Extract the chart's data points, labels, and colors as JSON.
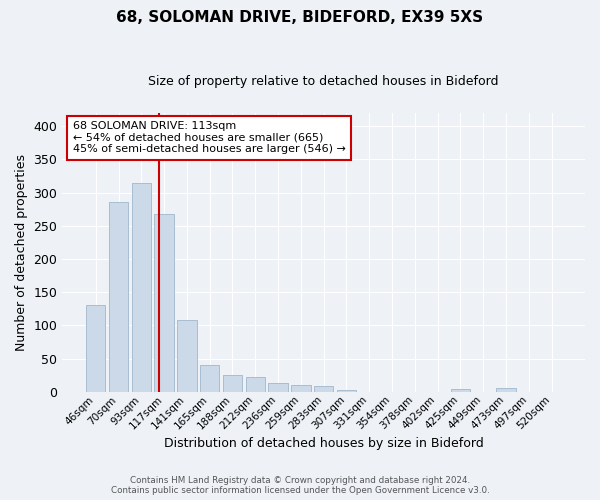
{
  "title": "68, SOLOMAN DRIVE, BIDEFORD, EX39 5XS",
  "subtitle": "Size of property relative to detached houses in Bideford",
  "xlabel": "Distribution of detached houses by size in Bideford",
  "ylabel": "Number of detached properties",
  "bar_labels": [
    "46sqm",
    "70sqm",
    "93sqm",
    "117sqm",
    "141sqm",
    "165sqm",
    "188sqm",
    "212sqm",
    "236sqm",
    "259sqm",
    "283sqm",
    "307sqm",
    "331sqm",
    "354sqm",
    "378sqm",
    "402sqm",
    "425sqm",
    "449sqm",
    "473sqm",
    "497sqm",
    "520sqm"
  ],
  "bar_values": [
    130,
    285,
    315,
    268,
    108,
    40,
    25,
    22,
    13,
    10,
    8,
    3,
    0,
    0,
    0,
    0,
    4,
    0,
    5,
    0,
    0
  ],
  "bar_color": "#ccd9e8",
  "bar_edge_color": "#a8bdd0",
  "vline_color": "#cc0000",
  "annotation_title": "68 SOLOMAN DRIVE: 113sqm",
  "annotation_line1": "← 54% of detached houses are smaller (665)",
  "annotation_line2": "45% of semi-detached houses are larger (546) →",
  "annotation_box_color": "#ffffff",
  "annotation_box_edge": "#cc0000",
  "ylim": [
    0,
    420
  ],
  "yticks": [
    0,
    50,
    100,
    150,
    200,
    250,
    300,
    350,
    400
  ],
  "footer1": "Contains HM Land Registry data © Crown copyright and database right 2024.",
  "footer2": "Contains public sector information licensed under the Open Government Licence v3.0.",
  "bg_color": "#eef2f7",
  "grid_color": "#ffffff",
  "title_fontsize": 11,
  "subtitle_fontsize": 9
}
